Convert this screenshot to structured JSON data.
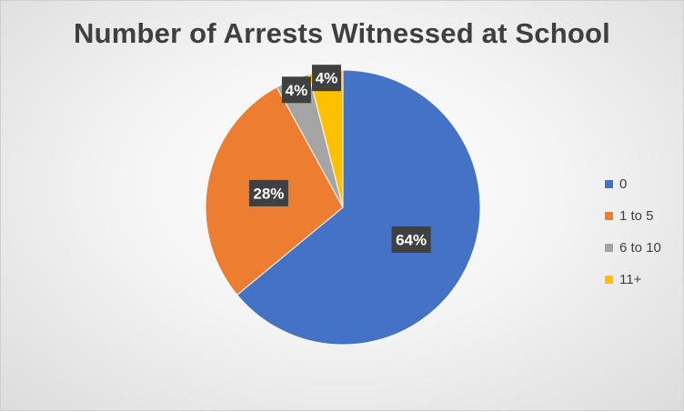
{
  "chart_data": {
    "type": "pie",
    "title": "Number of Arrests Witnessed at School",
    "categories": [
      "0",
      "1 to 5",
      "6 to 10",
      "11+"
    ],
    "values": [
      64,
      28,
      4,
      4
    ],
    "data_labels": [
      "64%",
      "28%",
      "4%",
      "4%"
    ],
    "colors": [
      "#4472C4",
      "#ED7D31",
      "#A5A5A5",
      "#FFC000"
    ],
    "legend_position": "right",
    "start_angle_deg": 0,
    "direction": "clockwise"
  }
}
